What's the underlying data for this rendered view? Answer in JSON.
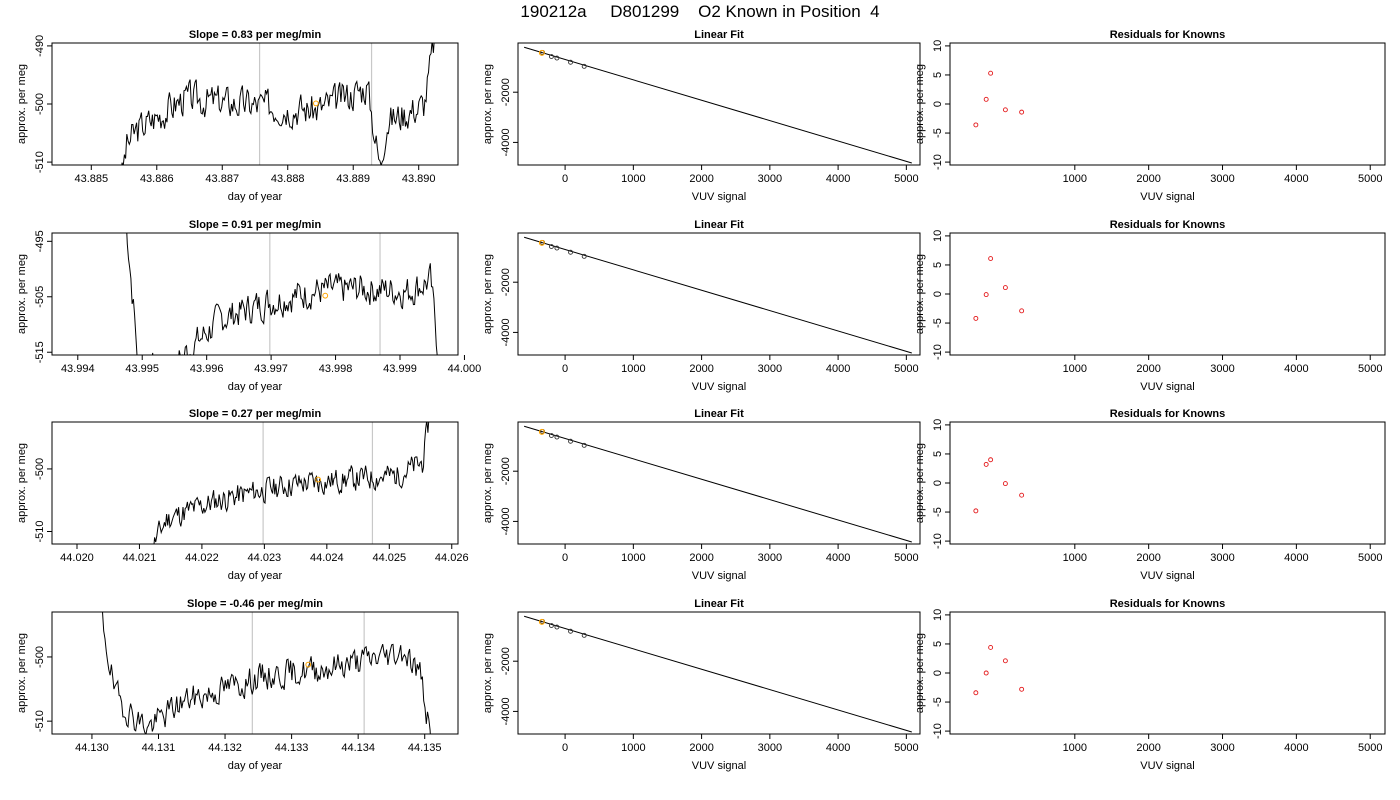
{
  "title": "190212a     D801299    O2 Known in Position  4",
  "colors": {
    "trace": "#000000",
    "marker": "#FFA500",
    "residual": "#E41A1C",
    "fitpoint": "#333333",
    "vline": "#C8C8C8",
    "line": "#000000"
  },
  "chart_data": [
    {
      "type": "line",
      "title": "Slope =  0.83  per meg/min",
      "xlabel": "day of year",
      "ylabel": "approx. per meg",
      "xlim": [
        43.8844,
        43.8906
      ],
      "ylim": [
        -510.5,
        -489.5
      ],
      "xticks": [
        "43.885",
        "43.886",
        "43.887",
        "43.888",
        "43.889",
        "43.890"
      ],
      "xtick_values": [
        43.885,
        43.886,
        43.887,
        43.888,
        43.889,
        43.89
      ],
      "yticks": [
        "-510",
        "-500",
        "-490"
      ],
      "ytick_values": [
        -510,
        -500,
        -490
      ],
      "vlines": [
        43.88757,
        43.88928
      ],
      "marker": {
        "x": 43.88843,
        "y": -499.9
      },
      "trace": {
        "x_start": 43.88545,
        "x_end": 43.89028,
        "start_y": -512,
        "mean": -499.5,
        "amp": 2.6,
        "seed": 3,
        "anchors": [
          [
            0.0,
            -513
          ],
          [
            0.02,
            -507
          ],
          [
            0.05,
            -504.5
          ],
          [
            0.2,
            -499
          ],
          [
            0.5,
            -500.5
          ],
          [
            0.62,
            -501
          ],
          [
            0.78,
            -497
          ],
          [
            0.82,
            -511
          ],
          [
            0.84,
            -503
          ],
          [
            0.96,
            -500
          ],
          [
            1.0,
            -486
          ]
        ]
      }
    },
    {
      "type": "line",
      "title": "Linear Fit",
      "xlabel": "VUV signal",
      "ylabel": "approx. per meg",
      "xlim": [
        -690,
        5200
      ],
      "ylim": [
        -4900,
        -40
      ],
      "xticks": [
        "0",
        "1000",
        "2000",
        "3000",
        "4000",
        "5000"
      ],
      "xtick_values": [
        0,
        1000,
        2000,
        3000,
        4000,
        5000
      ],
      "yticks": [
        "-4000",
        "-2000"
      ],
      "ytick_values": [
        -4000,
        -2000
      ],
      "fit_line": {
        "x": [
          -600,
          5080
        ],
        "y": [
          -210,
          -4820
        ]
      },
      "points": [
        {
          "x": -330,
          "y": -417
        },
        {
          "x": -200,
          "y": -580
        },
        {
          "x": -120,
          "y": -640
        },
        {
          "x": 80,
          "y": -807
        },
        {
          "x": 280,
          "y": -970
        }
      ],
      "highlight": {
        "x": -340,
        "y": -432
      }
    },
    {
      "type": "scatter",
      "title": "Residuals for Knowns",
      "xlabel": "VUV signal",
      "ylabel": "approx. per meg",
      "xlim": [
        -690,
        5200
      ],
      "ylim": [
        -10.5,
        10.5
      ],
      "xticks": [
        "1000",
        "2000",
        "3000",
        "4000",
        "5000"
      ],
      "xtick_values": [
        1000,
        2000,
        3000,
        4000,
        5000
      ],
      "yticks": [
        "-10",
        "-5",
        "0",
        "5",
        "10"
      ],
      "ytick_values": [
        -10,
        -5,
        0,
        5,
        10
      ],
      "points": [
        {
          "x": -340,
          "y": -3.6
        },
        {
          "x": -200,
          "y": 0.8
        },
        {
          "x": -140,
          "y": 5.3
        },
        {
          "x": 60,
          "y": -1.0
        },
        {
          "x": 280,
          "y": -1.4
        }
      ]
    },
    {
      "type": "line",
      "title": "Slope =  0.91  per meg/min",
      "xlabel": "day of year",
      "ylabel": "approx. per meg",
      "xlim": [
        43.9936,
        43.9999
      ],
      "ylim": [
        -515.5,
        -493.5
      ],
      "xticks": [
        "43.994",
        "43.995",
        "43.996",
        "43.997",
        "43.998",
        "43.999",
        "44.000"
      ],
      "xtick_values": [
        43.994,
        43.995,
        43.996,
        43.997,
        43.998,
        43.999,
        44.0
      ],
      "yticks": [
        "-515",
        "-505",
        "-495"
      ],
      "ytick_values": [
        -515,
        -505,
        -495
      ],
      "vlines": [
        43.99698,
        43.99869
      ],
      "marker": {
        "x": 43.99784,
        "y": -504.8
      },
      "trace": {
        "x_start": 43.99475,
        "x_end": 43.99962,
        "start_y": -491,
        "mean": -504.5,
        "amp": 2.6,
        "seed": 7,
        "anchors": [
          [
            0.0,
            -491
          ],
          [
            0.04,
            -518
          ],
          [
            0.14,
            -518
          ],
          [
            0.3,
            -509
          ],
          [
            0.45,
            -506
          ],
          [
            0.6,
            -504
          ],
          [
            0.75,
            -503.5
          ],
          [
            0.9,
            -504
          ],
          [
            0.97,
            -502
          ],
          [
            1.0,
            -518
          ]
        ]
      }
    },
    {
      "type": "line",
      "title": "Linear Fit",
      "xlabel": "VUV signal",
      "ylabel": "approx. per meg",
      "xlim": [
        -690,
        5200
      ],
      "ylim": [
        -4900,
        -40
      ],
      "xticks": [
        "0",
        "1000",
        "2000",
        "3000",
        "4000",
        "5000"
      ],
      "xtick_values": [
        0,
        1000,
        2000,
        3000,
        4000,
        5000
      ],
      "yticks": [
        "-4000",
        "-2000"
      ],
      "ytick_values": [
        -4000,
        -2000
      ],
      "fit_line": {
        "x": [
          -600,
          5080
        ],
        "y": [
          -210,
          -4820
        ]
      },
      "points": [
        {
          "x": -330,
          "y": -417
        },
        {
          "x": -200,
          "y": -580
        },
        {
          "x": -120,
          "y": -640
        },
        {
          "x": 80,
          "y": -807
        },
        {
          "x": 280,
          "y": -970
        }
      ],
      "highlight": {
        "x": -340,
        "y": -432
      }
    },
    {
      "type": "scatter",
      "title": "Residuals for Knowns",
      "xlabel": "VUV signal",
      "ylabel": "approx. per meg",
      "xlim": [
        -690,
        5200
      ],
      "ylim": [
        -10.5,
        10.5
      ],
      "xticks": [
        "1000",
        "2000",
        "3000",
        "4000",
        "5000"
      ],
      "xtick_values": [
        1000,
        2000,
        3000,
        4000,
        5000
      ],
      "yticks": [
        "-10",
        "-5",
        "0",
        "5",
        "10"
      ],
      "ytick_values": [
        -10,
        -5,
        0,
        5,
        10
      ],
      "points": [
        {
          "x": -340,
          "y": -4.2
        },
        {
          "x": -200,
          "y": -0.1
        },
        {
          "x": -140,
          "y": 6.1
        },
        {
          "x": 60,
          "y": 1.1
        },
        {
          "x": 280,
          "y": -2.9
        }
      ]
    },
    {
      "type": "line",
      "title": "Slope =  0.27  per meg/min",
      "xlabel": "day of year",
      "ylabel": "approx. per meg",
      "xlim": [
        44.0196,
        44.0261
      ],
      "ylim": [
        -512,
        -492.5
      ],
      "xticks": [
        "44.020",
        "44.021",
        "44.022",
        "44.023",
        "44.024",
        "44.025",
        "44.026"
      ],
      "xtick_values": [
        44.02,
        44.021,
        44.022,
        44.023,
        44.024,
        44.025,
        44.026
      ],
      "yticks": [
        "-510",
        "-500"
      ],
      "ytick_values": [
        -510,
        -500
      ],
      "vlines": [
        44.02298,
        44.02473
      ],
      "marker": {
        "x": 44.02386,
        "y": -501.7
      },
      "trace": {
        "x_start": 44.02112,
        "x_end": 44.02567,
        "start_y": -514,
        "mean": -503.2,
        "amp": 1.8,
        "seed": 11,
        "anchors": [
          [
            0.0,
            -514
          ],
          [
            0.07,
            -508
          ],
          [
            0.25,
            -505
          ],
          [
            0.5,
            -502.5
          ],
          [
            0.75,
            -501.5
          ],
          [
            0.88,
            -501
          ],
          [
            0.97,
            -499
          ],
          [
            1.0,
            -490
          ]
        ]
      }
    },
    {
      "type": "line",
      "title": "Linear Fit",
      "xlabel": "VUV signal",
      "ylabel": "approx. per meg",
      "xlim": [
        -690,
        5200
      ],
      "ylim": [
        -4900,
        -40
      ],
      "xticks": [
        "0",
        "1000",
        "2000",
        "3000",
        "4000",
        "5000"
      ],
      "xtick_values": [
        0,
        1000,
        2000,
        3000,
        4000,
        5000
      ],
      "yticks": [
        "-4000",
        "-2000"
      ],
      "ytick_values": [
        -4000,
        -2000
      ],
      "fit_line": {
        "x": [
          -600,
          5080
        ],
        "y": [
          -210,
          -4820
        ]
      },
      "points": [
        {
          "x": -330,
          "y": -417
        },
        {
          "x": -200,
          "y": -580
        },
        {
          "x": -120,
          "y": -640
        },
        {
          "x": 80,
          "y": -807
        },
        {
          "x": 280,
          "y": -970
        }
      ],
      "highlight": {
        "x": -340,
        "y": -432
      }
    },
    {
      "type": "scatter",
      "title": "Residuals for Knowns",
      "xlabel": "VUV signal",
      "ylabel": "approx. per meg",
      "xlim": [
        -690,
        5200
      ],
      "ylim": [
        -10.5,
        10.5
      ],
      "xticks": [
        "1000",
        "2000",
        "3000",
        "4000",
        "5000"
      ],
      "xtick_values": [
        1000,
        2000,
        3000,
        4000,
        5000
      ],
      "yticks": [
        "-10",
        "-5",
        "0",
        "5",
        "10"
      ],
      "ytick_values": [
        -10,
        -5,
        0,
        5,
        10
      ],
      "points": [
        {
          "x": -340,
          "y": -4.8
        },
        {
          "x": -200,
          "y": 3.2
        },
        {
          "x": -140,
          "y": 4.0
        },
        {
          "x": 60,
          "y": -0.1
        },
        {
          "x": 280,
          "y": -2.1
        }
      ]
    },
    {
      "type": "line",
      "title": "Slope =  -0.46  per meg/min",
      "xlabel": "day of year",
      "ylabel": "approx. per meg",
      "xlim": [
        44.1294,
        44.1355
      ],
      "ylim": [
        -512,
        -493
      ],
      "xticks": [
        "44.130",
        "44.131",
        "44.132",
        "44.133",
        "44.134",
        "44.135"
      ],
      "xtick_values": [
        44.13,
        44.131,
        44.132,
        44.133,
        44.134,
        44.135
      ],
      "yticks": [
        "-510",
        "-500"
      ],
      "ytick_values": [
        -510,
        -500
      ],
      "vlines": [
        44.13241,
        44.13409
      ],
      "marker": {
        "x": 44.13325,
        "y": -501.2
      },
      "trace": {
        "x_start": 44.1301,
        "x_end": 44.1351,
        "start_y": -491,
        "mean": -503.5,
        "amp": 2.0,
        "seed": 19,
        "anchors": [
          [
            0.0,
            -491
          ],
          [
            0.05,
            -506
          ],
          [
            0.1,
            -509
          ],
          [
            0.15,
            -511
          ],
          [
            0.25,
            -507
          ],
          [
            0.5,
            -503
          ],
          [
            0.65,
            -502
          ],
          [
            0.8,
            -500.5
          ],
          [
            0.92,
            -499
          ],
          [
            0.97,
            -503
          ],
          [
            1.0,
            -514
          ]
        ]
      }
    },
    {
      "type": "line",
      "title": "Linear Fit",
      "xlabel": "VUV signal",
      "ylabel": "approx. per meg",
      "xlim": [
        -690,
        5200
      ],
      "ylim": [
        -4900,
        -40
      ],
      "xticks": [
        "0",
        "1000",
        "2000",
        "3000",
        "4000",
        "5000"
      ],
      "xtick_values": [
        0,
        1000,
        2000,
        3000,
        4000,
        5000
      ],
      "yticks": [
        "-4000",
        "-2000"
      ],
      "ytick_values": [
        -4000,
        -2000
      ],
      "fit_line": {
        "x": [
          -600,
          5080
        ],
        "y": [
          -210,
          -4820
        ]
      },
      "points": [
        {
          "x": -330,
          "y": -417
        },
        {
          "x": -200,
          "y": -580
        },
        {
          "x": -120,
          "y": -640
        },
        {
          "x": 80,
          "y": -807
        },
        {
          "x": 280,
          "y": -970
        }
      ],
      "highlight": {
        "x": -340,
        "y": -432
      }
    },
    {
      "type": "scatter",
      "title": "Residuals for Knowns",
      "xlabel": "VUV signal",
      "ylabel": "approx. per meg",
      "xlim": [
        -690,
        5200
      ],
      "ylim": [
        -10.5,
        10.5
      ],
      "xticks": [
        "1000",
        "2000",
        "3000",
        "4000",
        "5000"
      ],
      "xtick_values": [
        1000,
        2000,
        3000,
        4000,
        5000
      ],
      "yticks": [
        "-10",
        "-5",
        "0",
        "5",
        "10"
      ],
      "ytick_values": [
        -10,
        -5,
        0,
        5,
        10
      ],
      "points": [
        {
          "x": -340,
          "y": -3.4
        },
        {
          "x": -200,
          "y": 0.0
        },
        {
          "x": -140,
          "y": 4.4
        },
        {
          "x": 60,
          "y": 2.1
        },
        {
          "x": 280,
          "y": -2.8
        }
      ]
    }
  ]
}
